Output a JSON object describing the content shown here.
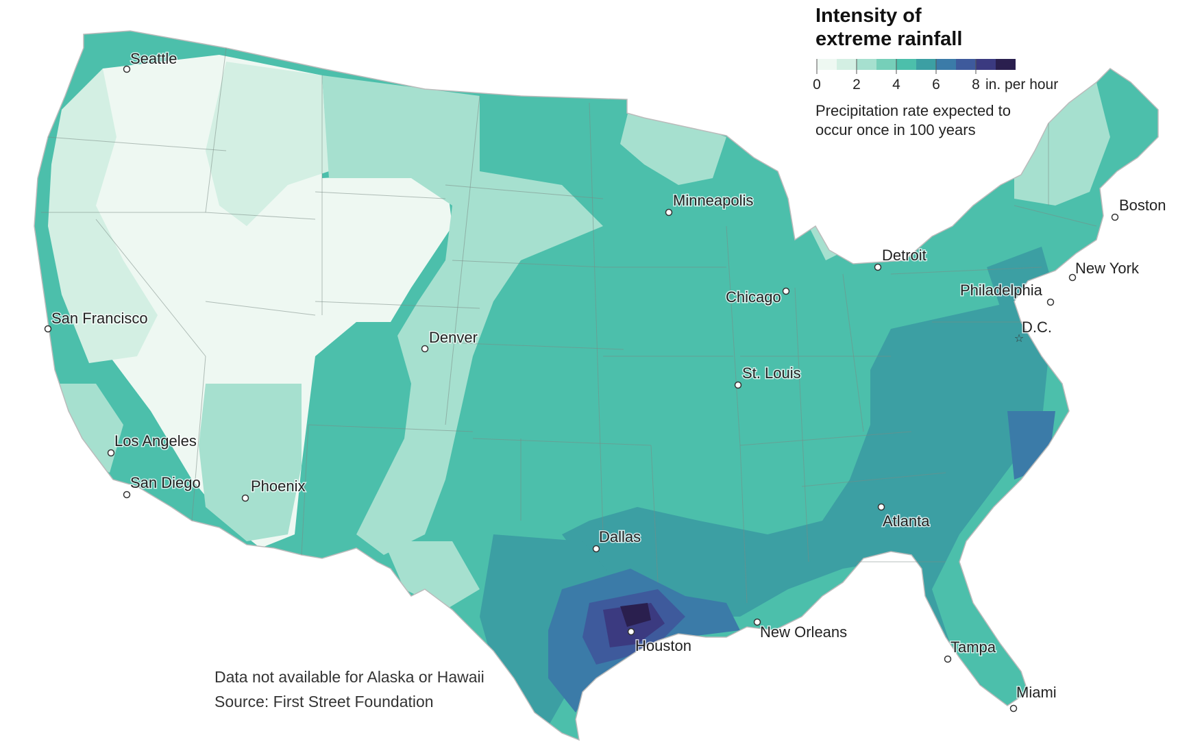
{
  "legend": {
    "title_line1": "Intensity of",
    "title_line2": "extreme rainfall",
    "ticks": [
      "0",
      "2",
      "4",
      "6",
      "8"
    ],
    "unit": "in. per hour",
    "description_line1": "Precipitation rate expected to",
    "description_line2": "occur once in 100 years",
    "colors": [
      "#eef8f2",
      "#d3efe3",
      "#a6e0cf",
      "#76cfb9",
      "#4cbfab",
      "#3c9fa3",
      "#3b7ba8",
      "#3e5a9c",
      "#3b3a80",
      "#2a1f4e"
    ]
  },
  "footnote": {
    "line1": "Data not available for Alaska or Hawaii",
    "line2": "Source: First Street Foundation"
  },
  "cities": [
    {
      "name": "Seattle"
    },
    {
      "name": "San Francisco"
    },
    {
      "name": "Los Angeles"
    },
    {
      "name": "San Diego"
    },
    {
      "name": "Phoenix"
    },
    {
      "name": "Denver"
    },
    {
      "name": "Minneapolis"
    },
    {
      "name": "Chicago"
    },
    {
      "name": "St. Louis"
    },
    {
      "name": "Detroit"
    },
    {
      "name": "Dallas"
    },
    {
      "name": "Houston"
    },
    {
      "name": "New Orleans"
    },
    {
      "name": "Atlanta"
    },
    {
      "name": "Tampa"
    },
    {
      "name": "Miami"
    },
    {
      "name": "D.C."
    },
    {
      "name": "Philadelphia"
    },
    {
      "name": "New York"
    },
    {
      "name": "Boston"
    }
  ]
}
